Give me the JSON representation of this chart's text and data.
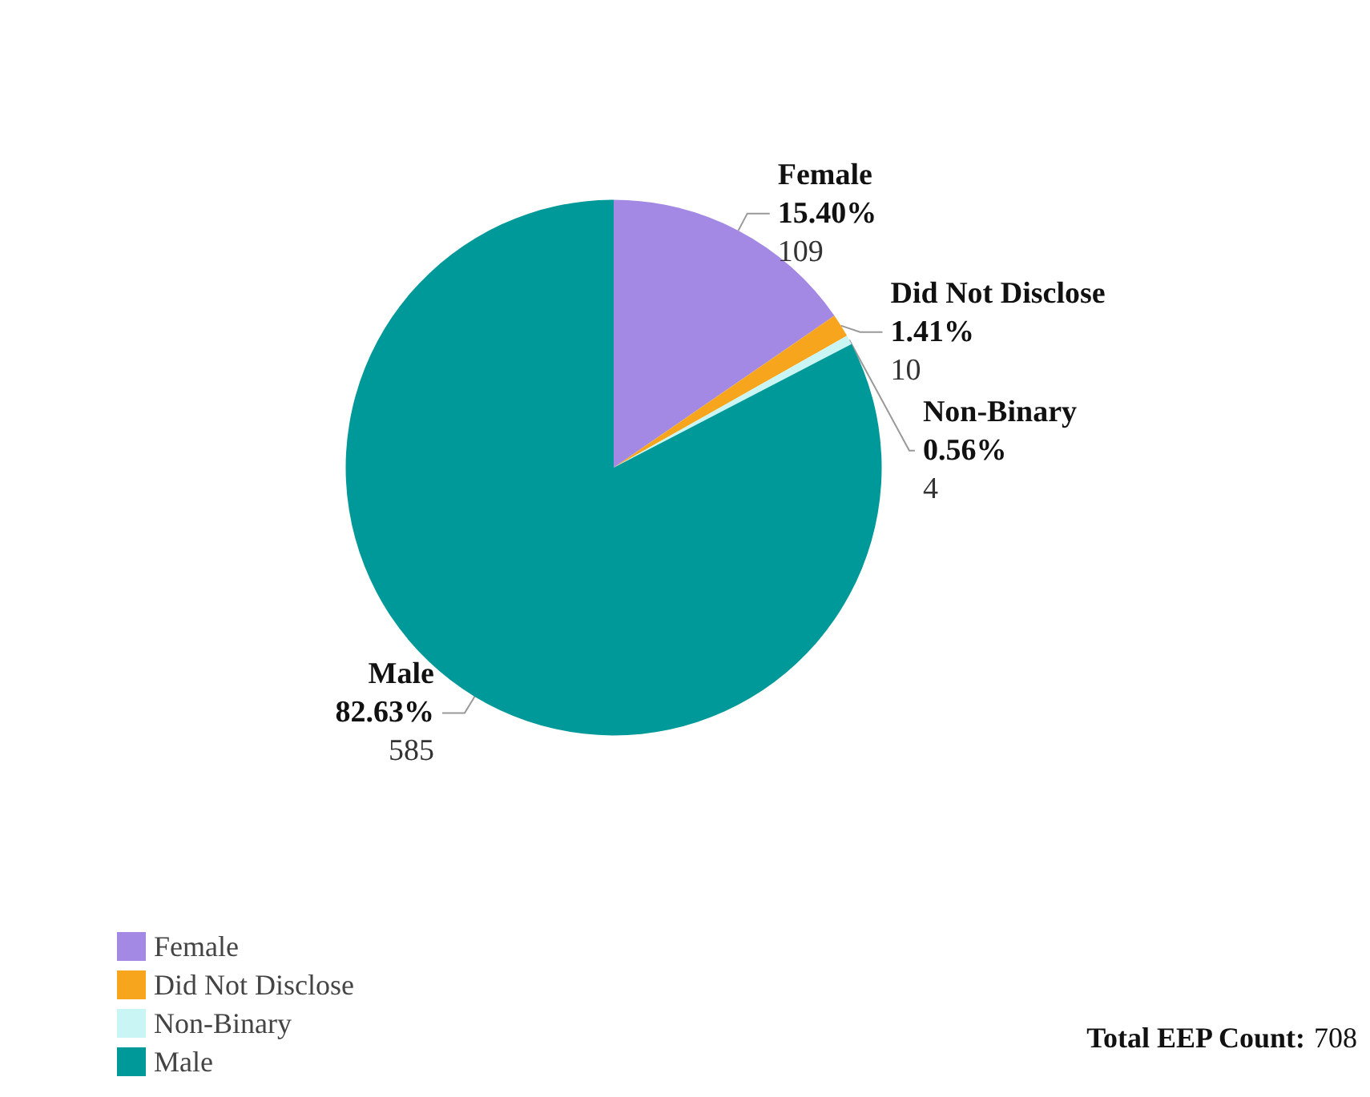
{
  "chart_data": {
    "type": "pie",
    "categories": [
      "Female",
      "Did Not Disclose",
      "Non-Binary",
      "Male"
    ],
    "values": [
      15.4,
      1.41,
      0.56,
      82.63
    ],
    "colors": [
      "#a389e4",
      "#f7a51c",
      "#c9f6f4",
      "#009999"
    ],
    "value_labels": [
      "15.40%\n109",
      "1.41%\n10",
      "0.56%\n4",
      "82.63%\n585"
    ],
    "legend": "bottom left",
    "annotations": [
      "Total EEP Count: 708"
    ]
  }
}
